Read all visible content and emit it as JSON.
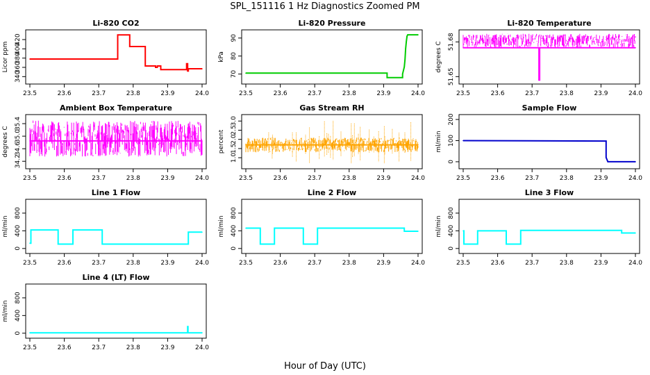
{
  "figure": {
    "title": "SPL_151116  1 Hz Diagnostics Zoomed PM",
    "xlabel": "Hour of Day (UTC)"
  },
  "chart_data": [
    {
      "type": "line",
      "title": "Li-820 CO2",
      "ylabel": "Licor ppm",
      "color": "#ff0000",
      "xlim": [
        23.5,
        24.0
      ],
      "xticks": [
        "23.5",
        "23.6",
        "23.7",
        "23.8",
        "23.9",
        "24.0"
      ],
      "ylim": [
        330,
        435
      ],
      "yticks": [
        340,
        360,
        380,
        400,
        420
      ],
      "series": [
        {
          "x": [
            23.5,
            23.755,
            23.755,
            23.79,
            23.79,
            23.835,
            23.835,
            23.865,
            23.865,
            23.87,
            23.87,
            23.88,
            23.88,
            23.955,
            23.955,
            23.958,
            23.958,
            23.96,
            23.96,
            24.0
          ],
          "y": [
            378,
            378,
            430,
            430,
            405,
            405,
            363,
            363,
            360,
            360,
            363,
            363,
            355,
            355,
            368,
            368,
            352,
            352,
            357,
            357
          ]
        }
      ]
    },
    {
      "type": "line",
      "title": "Li-820 Pressure",
      "ylabel": "kPa",
      "color": "#00cc00",
      "xlim": [
        23.5,
        24.0
      ],
      "xticks": [
        "23.5",
        "23.6",
        "23.7",
        "23.8",
        "23.9",
        "24.0"
      ],
      "ylim": [
        66,
        93
      ],
      "yticks": [
        70,
        80,
        90
      ],
      "series": [
        {
          "x": [
            23.5,
            23.91,
            23.91,
            23.955,
            23.955,
            23.96,
            23.962,
            23.964,
            23.966,
            23.968,
            23.97,
            24.0
          ],
          "y": [
            70.5,
            70.5,
            68,
            68,
            70,
            74,
            78,
            84,
            88,
            91,
            91.8,
            91.8
          ]
        }
      ]
    },
    {
      "type": "line",
      "title": "Li-820 Temperature",
      "ylabel": "degrees C",
      "color": "#ff00ff",
      "xlim": [
        23.5,
        24.0
      ],
      "xticks": [
        "23.5",
        "23.6",
        "23.7",
        "23.8",
        "23.9",
        "24.0"
      ],
      "ylim": [
        51.646,
        51.688
      ],
      "yticks": [
        "51.65",
        "51.68"
      ],
      "series": [
        {
          "x": [
            23.5,
            23.72,
            23.72,
            23.722,
            23.722,
            24.0
          ],
          "y": [
            51.675,
            51.675,
            51.647,
            51.647,
            51.675,
            51.675
          ]
        }
      ],
      "note_band": [
        51.675,
        51.687
      ]
    },
    {
      "type": "line",
      "title": "Ambient Box Temperature",
      "ylabel": "degrees C",
      "color": "#ff00ff",
      "xlim": [
        23.5,
        24.0
      ],
      "xticks": [
        "23.5",
        "23.6",
        "23.7",
        "23.8",
        "23.9",
        "24.0"
      ],
      "ylim": [
        34.05,
        35.6
      ],
      "yticks": [
        "34.2",
        "34.6",
        "35.0",
        "35.4"
      ],
      "series": [
        {
          "x": [
            23.5,
            24.0
          ],
          "y": [
            34.85,
            34.85
          ]
        }
      ],
      "band": [
        34.35,
        35.5
      ]
    },
    {
      "type": "line",
      "title": "Gas Stream RH",
      "ylabel": "percent",
      "color": "#ffa500",
      "xlim": [
        23.5,
        24.0
      ],
      "xticks": [
        "23.5",
        "23.6",
        "23.7",
        "23.8",
        "23.9",
        "24.0"
      ],
      "ylim": [
        0.55,
        3.2
      ],
      "yticks": [
        "1.0",
        "1.5",
        "2.0",
        "2.5",
        "3.0"
      ],
      "series": [
        {
          "x": [
            23.5,
            24.0
          ],
          "y": [
            1.7,
            1.7
          ]
        }
      ],
      "band": [
        1.3,
        2.1
      ]
    },
    {
      "type": "line",
      "title": "Sample Flow",
      "ylabel": "ml/min",
      "color": "#0000cc",
      "xlim": [
        23.5,
        24.0
      ],
      "xticks": [
        "23.5",
        "23.6",
        "23.7",
        "23.8",
        "23.9",
        "24.0"
      ],
      "ylim": [
        -20,
        210
      ],
      "yticks": [
        0,
        100,
        200
      ],
      "series": [
        {
          "x": [
            23.5,
            23.915,
            23.915,
            23.92,
            24.0
          ],
          "y": [
            100,
            98,
            20,
            0,
            0
          ]
        }
      ]
    },
    {
      "type": "line",
      "title": "Line 1 Flow",
      "ylabel": "ml/min",
      "color": "#00ffff",
      "xlim": [
        23.5,
        24.0
      ],
      "xticks": [
        "23.5",
        "23.6",
        "23.7",
        "23.8",
        "23.9",
        "24.0"
      ],
      "ylim": [
        -50,
        1050
      ],
      "yticks": [
        0,
        400,
        800
      ],
      "series": [
        {
          "x": [
            23.5,
            23.503,
            23.503,
            23.582,
            23.582,
            23.625,
            23.625,
            23.71,
            23.71,
            23.96,
            23.96,
            23.962,
            23.962,
            24.0
          ],
          "y": [
            120,
            120,
            420,
            420,
            100,
            100,
            420,
            420,
            100,
            100,
            370,
            370,
            370,
            370
          ]
        }
      ]
    },
    {
      "type": "line",
      "title": "Line 2 Flow",
      "ylabel": "ml/min",
      "color": "#00ffff",
      "xlim": [
        23.5,
        24.0
      ],
      "xticks": [
        "23.5",
        "23.6",
        "23.7",
        "23.8",
        "23.9",
        "24.0"
      ],
      "ylim": [
        -50,
        1050
      ],
      "yticks": [
        0,
        400,
        800
      ],
      "series": [
        {
          "x": [
            23.5,
            23.542,
            23.542,
            23.583,
            23.583,
            23.667,
            23.667,
            23.708,
            23.708,
            23.96,
            23.96,
            24.0
          ],
          "y": [
            460,
            460,
            100,
            100,
            460,
            460,
            100,
            100,
            460,
            460,
            390,
            390
          ]
        }
      ]
    },
    {
      "type": "line",
      "title": "Line 3 Flow",
      "ylabel": "ml/min",
      "color": "#00ffff",
      "xlim": [
        23.5,
        24.0
      ],
      "xticks": [
        "23.5",
        "23.6",
        "23.7",
        "23.8",
        "23.9",
        "24.0"
      ],
      "ylim": [
        -50,
        1050
      ],
      "yticks": [
        0,
        400,
        800
      ],
      "series": [
        {
          "x": [
            23.5,
            23.502,
            23.502,
            23.503,
            23.503,
            23.542,
            23.542,
            23.625,
            23.625,
            23.667,
            23.667,
            23.96,
            23.96,
            24.0
          ],
          "y": [
            400,
            400,
            100,
            100,
            100,
            100,
            400,
            400,
            100,
            100,
            410,
            410,
            350,
            350
          ]
        }
      ]
    },
    {
      "type": "line",
      "title": "Line 4 (LT) Flow",
      "ylabel": "ml/min",
      "color": "#00ffff",
      "xlim": [
        23.5,
        24.0
      ],
      "xticks": [
        "23.5",
        "23.6",
        "23.7",
        "23.8",
        "23.9",
        "24.0"
      ],
      "ylim": [
        -50,
        1050
      ],
      "yticks": [
        0,
        400,
        800
      ],
      "series": [
        {
          "x": [
            23.5,
            23.958,
            23.958,
            23.959,
            23.959,
            24.0
          ],
          "y": [
            10,
            10,
            150,
            150,
            10,
            10
          ]
        }
      ]
    }
  ]
}
